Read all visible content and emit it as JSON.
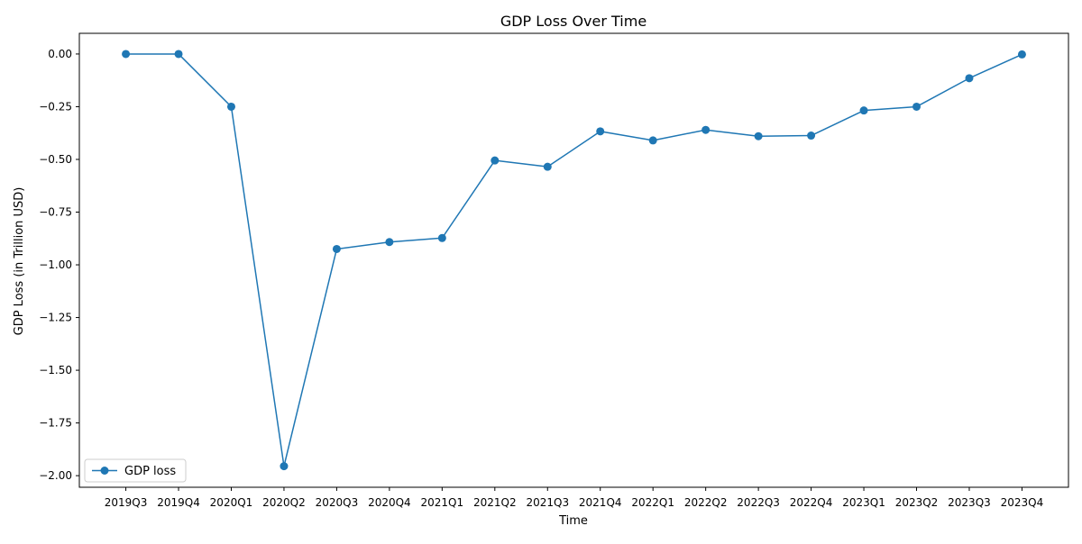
{
  "chart_data": {
    "type": "line",
    "title": "GDP Loss Over Time",
    "xlabel": "Time",
    "ylabel": "GDP Loss (in Trillion USD)",
    "categories": [
      "2019Q3",
      "2019Q4",
      "2020Q1",
      "2020Q2",
      "2020Q3",
      "2020Q4",
      "2021Q1",
      "2021Q2",
      "2021Q3",
      "2021Q4",
      "2022Q1",
      "2022Q2",
      "2022Q3",
      "2022Q4",
      "2023Q1",
      "2023Q2",
      "2023Q3",
      "2023Q4"
    ],
    "series": [
      {
        "name": "GDP loss",
        "color": "#1f77b4",
        "marker": "circle",
        "values": [
          0.0,
          0.0,
          -0.25,
          -1.955,
          -0.925,
          -0.892,
          -0.873,
          -0.505,
          -0.535,
          -0.367,
          -0.41,
          -0.36,
          -0.39,
          -0.387,
          -0.268,
          -0.25,
          -0.115,
          -0.002
        ]
      }
    ],
    "ylim": [
      -2.055,
      0.098
    ],
    "yticks": [
      0.0,
      -0.25,
      -0.5,
      -0.75,
      -1.0,
      -1.25,
      -1.5,
      -1.75,
      -2.0
    ],
    "ytick_labels": [
      "0.00",
      "−0.25",
      "−0.50",
      "−0.75",
      "−1.00",
      "−1.25",
      "−1.50",
      "−1.75",
      "−2.00"
    ],
    "grid": false,
    "legend_position": "lower-left"
  }
}
